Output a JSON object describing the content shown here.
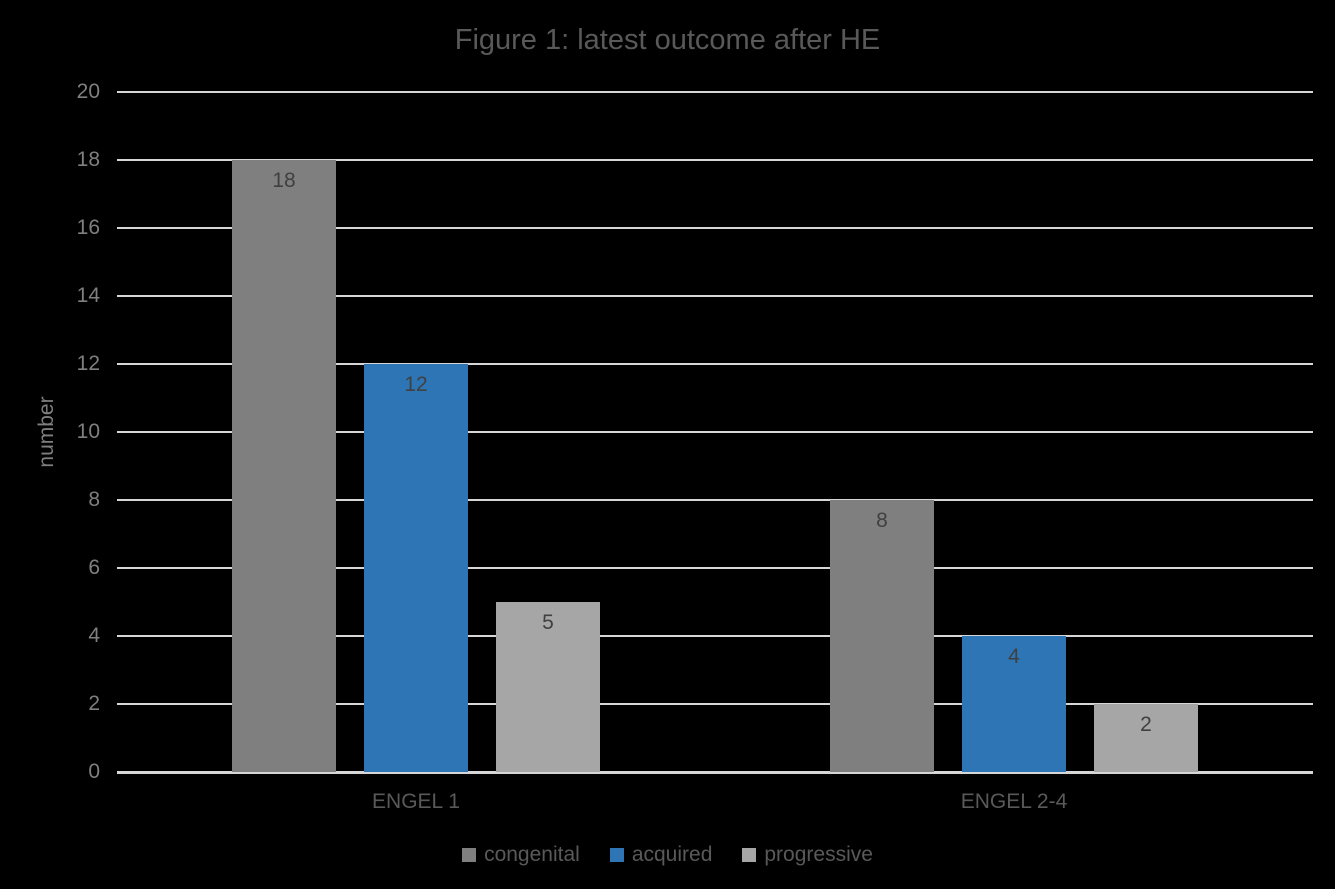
{
  "page": {
    "background_color": "#000000"
  },
  "chart_data": {
    "type": "bar",
    "title": "Figure 1: latest outcome after HE",
    "xlabel": "",
    "ylabel": "number",
    "categories": [
      "ENGEL 1",
      "ENGEL 2-4"
    ],
    "series": [
      {
        "name": "congenital",
        "color": "#7F7F7F",
        "values": [
          18,
          8
        ]
      },
      {
        "name": "acquired",
        "color": "#2E75B6",
        "values": [
          12,
          4
        ]
      },
      {
        "name": "progressive",
        "color": "#A6A6A6",
        "values": [
          5,
          2
        ]
      }
    ],
    "ylim": [
      0,
      20
    ],
    "ytick_step": 2,
    "grid": true,
    "legend_position": "bottom",
    "gridline_color": "#D6D6D6",
    "axis_line_color": "#D6D6D6",
    "text_colors": {
      "title": "#595959",
      "axis_ticks": "#7F7F7F",
      "axis_title": "#7F7F7F",
      "category_labels": "#595959",
      "data_labels": "#404040",
      "legend": "#595959"
    }
  }
}
